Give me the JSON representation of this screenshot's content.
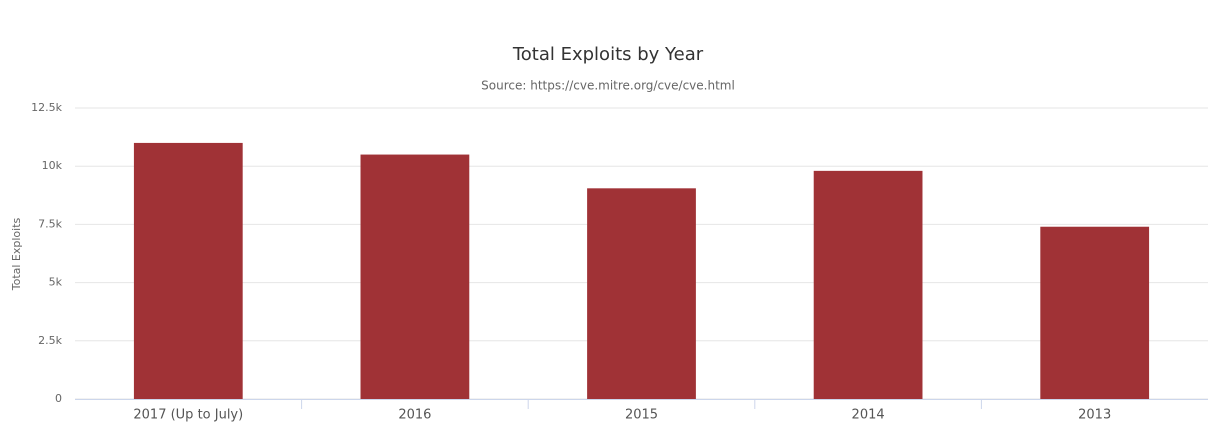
{
  "chart_data": {
    "type": "bar",
    "title": "Total Exploits by Year",
    "subtitle": "Source: https://cve.mitre.org/cve/cve.html",
    "y_label": "Total Exploits",
    "categories": [
      "2017 (Up to July)",
      "2016",
      "2015",
      "2014",
      "2013"
    ],
    "values": [
      11000,
      10500,
      9050,
      9800,
      7400
    ],
    "color": "#a03236",
    "ylim": [
      0,
      12500
    ],
    "yticks": [
      0,
      {
        "value": 2500,
        "label": "2.5k"
      },
      {
        "value": 5000,
        "label": "5k"
      },
      {
        "value": 7500,
        "label": "7.5k"
      },
      {
        "value": 10000,
        "label": "10k"
      },
      {
        "value": 12500,
        "label": "12.5k"
      }
    ],
    "grid": true
  }
}
